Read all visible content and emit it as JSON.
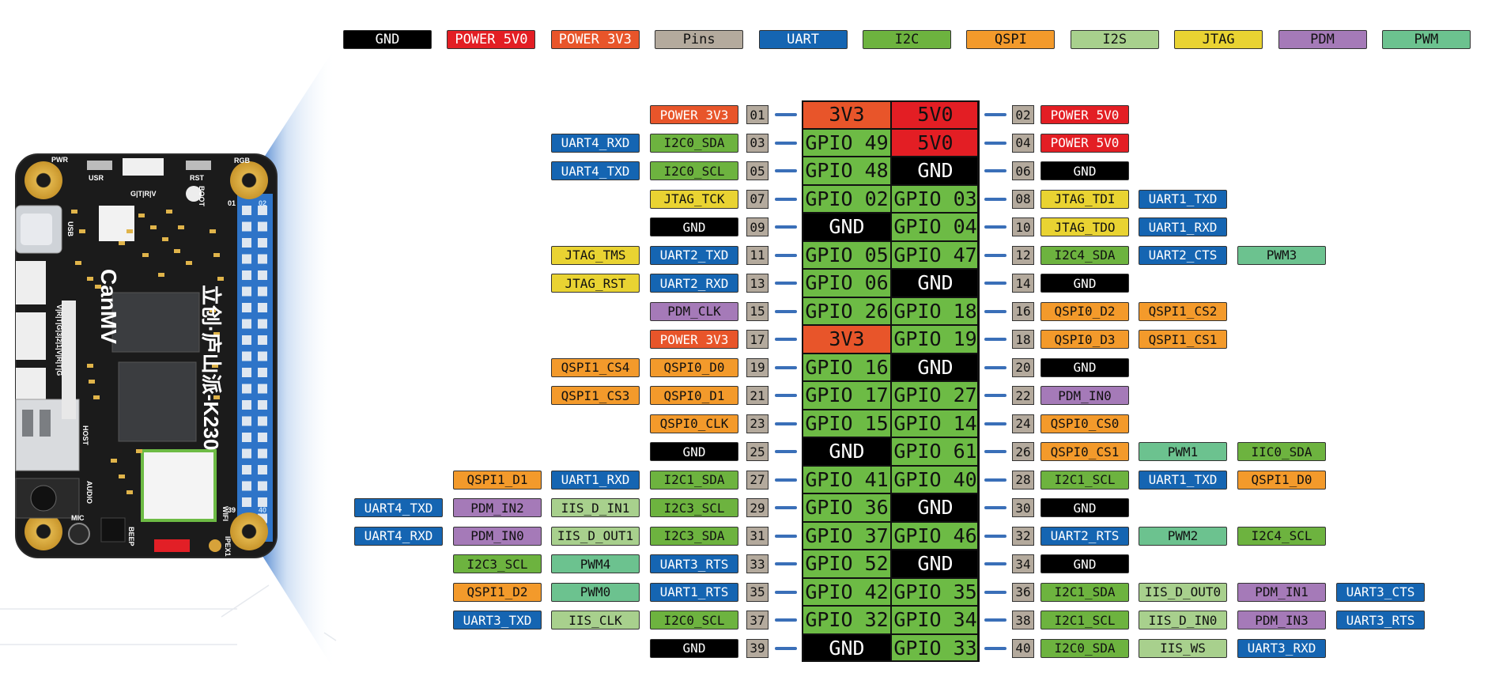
{
  "colors": {
    "GND": "#000000",
    "POWER_5V0": "#e31e24",
    "POWER_3V3": "#e8552a",
    "Pins": "#b4aa9d",
    "UART": "#1565b2",
    "I2C": "#6db33f",
    "QSPI": "#f39a2b",
    "I2S": "#a8d08d",
    "JTAG": "#e9d332",
    "PDM": "#a57ab8",
    "PWM": "#6cc28f",
    "GPIO": "#6dbb45",
    "3V3": "#e8552a",
    "5V0": "#e31e24"
  },
  "legend": [
    {
      "label": "GND",
      "type": "GND"
    },
    {
      "label": "POWER 5V0",
      "type": "POWER_5V0"
    },
    {
      "label": "POWER 3V3",
      "type": "POWER_3V3"
    },
    {
      "label": "Pins",
      "type": "Pins"
    },
    {
      "label": "UART",
      "type": "UART"
    },
    {
      "label": "I2C",
      "type": "I2C"
    },
    {
      "label": "QSPI",
      "type": "QSPI"
    },
    {
      "label": "I2S",
      "type": "I2S"
    },
    {
      "label": "JTAG",
      "type": "JTAG"
    },
    {
      "label": "PDM",
      "type": "PDM"
    },
    {
      "label": "PWM",
      "type": "PWM"
    }
  ],
  "board": {
    "brand": "CanMV",
    "model": "立创·庐山派-K230",
    "silk": {
      "pwr": "PWR",
      "usr": "USR",
      "rgb": "RGB",
      "rst": "RST",
      "gtrv": "G|T|R|V",
      "boot": "BOOT",
      "usb": "USB",
      "pin01": "01",
      "pin02": "02",
      "pin39": "39",
      "pin40": "40",
      "vrtg": "V|R|T|G|3|2|1|V|R|T|G",
      "host": "HOST",
      "audio": "AUDIO",
      "mic": "MIC",
      "beep": "BEEP",
      "wifi": "WIFI",
      "ipex": "IPEX1",
      "tf": "TF",
      "cam": "CAM"
    }
  },
  "rows": [
    {
      "left_pin": {
        "num": "01",
        "label": "3V3",
        "type": "3V3"
      },
      "right_pin": {
        "num": "02",
        "label": "5V0",
        "type": "5V0"
      },
      "left_funcs": [
        {
          "label": "POWER 3V3",
          "type": "POWER_3V3"
        }
      ],
      "right_funcs": [
        {
          "label": "POWER 5V0",
          "type": "POWER_5V0"
        }
      ]
    },
    {
      "left_pin": {
        "num": "03",
        "label": "GPIO 49",
        "type": "GPIO"
      },
      "right_pin": {
        "num": "04",
        "label": "5V0",
        "type": "5V0"
      },
      "left_funcs": [
        {
          "label": "I2C0_SDA",
          "type": "I2C"
        },
        {
          "label": "UART4_RXD",
          "type": "UART"
        }
      ],
      "right_funcs": [
        {
          "label": "POWER 5V0",
          "type": "POWER_5V0"
        }
      ]
    },
    {
      "left_pin": {
        "num": "05",
        "label": "GPIO 48",
        "type": "GPIO"
      },
      "right_pin": {
        "num": "06",
        "label": "GND",
        "type": "GND"
      },
      "left_funcs": [
        {
          "label": "I2C0_SCL",
          "type": "I2C"
        },
        {
          "label": "UART4_TXD",
          "type": "UART"
        }
      ],
      "right_funcs": [
        {
          "label": "GND",
          "type": "GND"
        }
      ]
    },
    {
      "left_pin": {
        "num": "07",
        "label": "GPIO 02",
        "type": "GPIO"
      },
      "right_pin": {
        "num": "08",
        "label": "GPIO 03",
        "type": "GPIO"
      },
      "left_funcs": [
        {
          "label": "JTAG_TCK",
          "type": "JTAG"
        }
      ],
      "right_funcs": [
        {
          "label": "JTAG_TDI",
          "type": "JTAG"
        },
        {
          "label": "UART1_TXD",
          "type": "UART"
        }
      ]
    },
    {
      "left_pin": {
        "num": "09",
        "label": "GND",
        "type": "GND"
      },
      "right_pin": {
        "num": "10",
        "label": "GPIO 04",
        "type": "GPIO"
      },
      "left_funcs": [
        {
          "label": "GND",
          "type": "GND"
        }
      ],
      "right_funcs": [
        {
          "label": "JTAG_TDO",
          "type": "JTAG"
        },
        {
          "label": "UART1_RXD",
          "type": "UART"
        }
      ]
    },
    {
      "left_pin": {
        "num": "11",
        "label": "GPIO 05",
        "type": "GPIO"
      },
      "right_pin": {
        "num": "12",
        "label": "GPIO 47",
        "type": "GPIO"
      },
      "left_funcs": [
        {
          "label": "UART2_TXD",
          "type": "UART"
        },
        {
          "label": "JTAG_TMS",
          "type": "JTAG"
        }
      ],
      "right_funcs": [
        {
          "label": "I2C4_SDA",
          "type": "I2C"
        },
        {
          "label": "UART2_CTS",
          "type": "UART"
        },
        {
          "label": "PWM3",
          "type": "PWM"
        }
      ]
    },
    {
      "left_pin": {
        "num": "13",
        "label": "GPIO 06",
        "type": "GPIO"
      },
      "right_pin": {
        "num": "14",
        "label": "GND",
        "type": "GND"
      },
      "left_funcs": [
        {
          "label": "UART2_RXD",
          "type": "UART"
        },
        {
          "label": "JTAG_RST",
          "type": "JTAG"
        }
      ],
      "right_funcs": [
        {
          "label": "GND",
          "type": "GND"
        }
      ]
    },
    {
      "left_pin": {
        "num": "15",
        "label": "GPIO 26",
        "type": "GPIO"
      },
      "right_pin": {
        "num": "16",
        "label": "GPIO 18",
        "type": "GPIO"
      },
      "left_funcs": [
        {
          "label": "PDM_CLK",
          "type": "PDM"
        }
      ],
      "right_funcs": [
        {
          "label": "QSPI0_D2",
          "type": "QSPI"
        },
        {
          "label": "QSPI1_CS2",
          "type": "QSPI"
        }
      ]
    },
    {
      "left_pin": {
        "num": "17",
        "label": "3V3",
        "type": "3V3"
      },
      "right_pin": {
        "num": "18",
        "label": "GPIO 19",
        "type": "GPIO"
      },
      "left_funcs": [
        {
          "label": "POWER 3V3",
          "type": "POWER_3V3"
        }
      ],
      "right_funcs": [
        {
          "label": "QSPI0_D3",
          "type": "QSPI"
        },
        {
          "label": "QSPI1_CS1",
          "type": "QSPI"
        }
      ]
    },
    {
      "left_pin": {
        "num": "19",
        "label": "GPIO 16",
        "type": "GPIO"
      },
      "right_pin": {
        "num": "20",
        "label": "GND",
        "type": "GND"
      },
      "left_funcs": [
        {
          "label": "QSPI0_D0",
          "type": "QSPI"
        },
        {
          "label": "QSPI1_CS4",
          "type": "QSPI"
        }
      ],
      "right_funcs": [
        {
          "label": "GND",
          "type": "GND"
        }
      ]
    },
    {
      "left_pin": {
        "num": "21",
        "label": "GPIO 17",
        "type": "GPIO"
      },
      "right_pin": {
        "num": "22",
        "label": "GPIO 27",
        "type": "GPIO"
      },
      "left_funcs": [
        {
          "label": "QSPI0_D1",
          "type": "QSPI"
        },
        {
          "label": "QSPI1_CS3",
          "type": "QSPI"
        }
      ],
      "right_funcs": [
        {
          "label": "PDM_IN0",
          "type": "PDM"
        }
      ]
    },
    {
      "left_pin": {
        "num": "23",
        "label": "GPIO 15",
        "type": "GPIO"
      },
      "right_pin": {
        "num": "24",
        "label": "GPIO 14",
        "type": "GPIO"
      },
      "left_funcs": [
        {
          "label": "QSPI0_CLK",
          "type": "QSPI"
        }
      ],
      "right_funcs": [
        {
          "label": "QSPI0_CS0",
          "type": "QSPI"
        }
      ]
    },
    {
      "left_pin": {
        "num": "25",
        "label": "GND",
        "type": "GND"
      },
      "right_pin": {
        "num": "26",
        "label": "GPIO 61",
        "type": "GPIO"
      },
      "left_funcs": [
        {
          "label": "GND",
          "type": "GND"
        }
      ],
      "right_funcs": [
        {
          "label": "QSPI0_CS1",
          "type": "QSPI"
        },
        {
          "label": "PWM1",
          "type": "PWM"
        },
        {
          "label": "IIC0_SDA",
          "type": "I2C"
        }
      ]
    },
    {
      "left_pin": {
        "num": "27",
        "label": "GPIO 41",
        "type": "GPIO"
      },
      "right_pin": {
        "num": "28",
        "label": "GPIO 40",
        "type": "GPIO"
      },
      "left_funcs": [
        {
          "label": "I2C1_SDA",
          "type": "I2C"
        },
        {
          "label": "UART1_RXD",
          "type": "UART"
        },
        {
          "label": "QSPI1_D1",
          "type": "QSPI"
        }
      ],
      "right_funcs": [
        {
          "label": "I2C1_SCL",
          "type": "I2C"
        },
        {
          "label": "UART1_TXD",
          "type": "UART"
        },
        {
          "label": "QSPI1_D0",
          "type": "QSPI"
        }
      ]
    },
    {
      "left_pin": {
        "num": "29",
        "label": "GPIO 36",
        "type": "GPIO"
      },
      "right_pin": {
        "num": "30",
        "label": "GND",
        "type": "GND"
      },
      "left_funcs": [
        {
          "label": "I2C3_SCL",
          "type": "I2C"
        },
        {
          "label": "IIS_D_IN1",
          "type": "I2S"
        },
        {
          "label": "PDM_IN2",
          "type": "PDM"
        },
        {
          "label": "UART4_TXD",
          "type": "UART"
        }
      ],
      "right_funcs": [
        {
          "label": "GND",
          "type": "GND"
        }
      ]
    },
    {
      "left_pin": {
        "num": "31",
        "label": "GPIO 37",
        "type": "GPIO"
      },
      "right_pin": {
        "num": "32",
        "label": "GPIO 46",
        "type": "GPIO"
      },
      "left_funcs": [
        {
          "label": "I2C3_SDA",
          "type": "I2C"
        },
        {
          "label": "IIS_D_OUT1",
          "type": "I2S"
        },
        {
          "label": "PDM_IN0",
          "type": "PDM"
        },
        {
          "label": "UART4_RXD",
          "type": "UART"
        }
      ],
      "right_funcs": [
        {
          "label": "UART2_RTS",
          "type": "UART"
        },
        {
          "label": "PWM2",
          "type": "PWM"
        },
        {
          "label": "I2C4_SCL",
          "type": "I2C"
        }
      ]
    },
    {
      "left_pin": {
        "num": "33",
        "label": "GPIO 52",
        "type": "GPIO"
      },
      "right_pin": {
        "num": "34",
        "label": "GND",
        "type": "GND"
      },
      "left_funcs": [
        {
          "label": "UART3_RTS",
          "type": "UART"
        },
        {
          "label": "PWM4",
          "type": "PWM"
        },
        {
          "label": "I2C3_SCL",
          "type": "I2C"
        }
      ],
      "right_funcs": [
        {
          "label": "GND",
          "type": "GND"
        }
      ]
    },
    {
      "left_pin": {
        "num": "35",
        "label": "GPIO 42",
        "type": "GPIO"
      },
      "right_pin": {
        "num": "36",
        "label": "GPIO 35",
        "type": "GPIO"
      },
      "left_funcs": [
        {
          "label": "UART1_RTS",
          "type": "UART"
        },
        {
          "label": "PWM0",
          "type": "PWM"
        },
        {
          "label": "QSPI1_D2",
          "type": "QSPI"
        }
      ],
      "right_funcs": [
        {
          "label": "I2C1_SDA",
          "type": "I2C"
        },
        {
          "label": "IIS_D_OUT0",
          "type": "I2S"
        },
        {
          "label": "PDM_IN1",
          "type": "PDM"
        },
        {
          "label": "UART3_CTS",
          "type": "UART"
        }
      ]
    },
    {
      "left_pin": {
        "num": "37",
        "label": "GPIO 32",
        "type": "GPIO"
      },
      "right_pin": {
        "num": "38",
        "label": "GPIO 34",
        "type": "GPIO"
      },
      "left_funcs": [
        {
          "label": "I2C0_SCL",
          "type": "I2C"
        },
        {
          "label": "IIS_CLK",
          "type": "I2S"
        },
        {
          "label": "UART3_TXD",
          "type": "UART"
        }
      ],
      "right_funcs": [
        {
          "label": "I2C1_SCL",
          "type": "I2C"
        },
        {
          "label": "IIS_D_IN0",
          "type": "I2S"
        },
        {
          "label": "PDM_IN3",
          "type": "PDM"
        },
        {
          "label": "UART3_RTS",
          "type": "UART"
        }
      ]
    },
    {
      "left_pin": {
        "num": "39",
        "label": "GND",
        "type": "GND"
      },
      "right_pin": {
        "num": "40",
        "label": "GPIO 33",
        "type": "GPIO"
      },
      "left_funcs": [
        {
          "label": "GND",
          "type": "GND"
        }
      ],
      "right_funcs": [
        {
          "label": "I2C0_SDA",
          "type": "I2C"
        },
        {
          "label": "IIS_WS",
          "type": "I2S"
        },
        {
          "label": "UART3_RXD",
          "type": "UART"
        }
      ]
    }
  ]
}
